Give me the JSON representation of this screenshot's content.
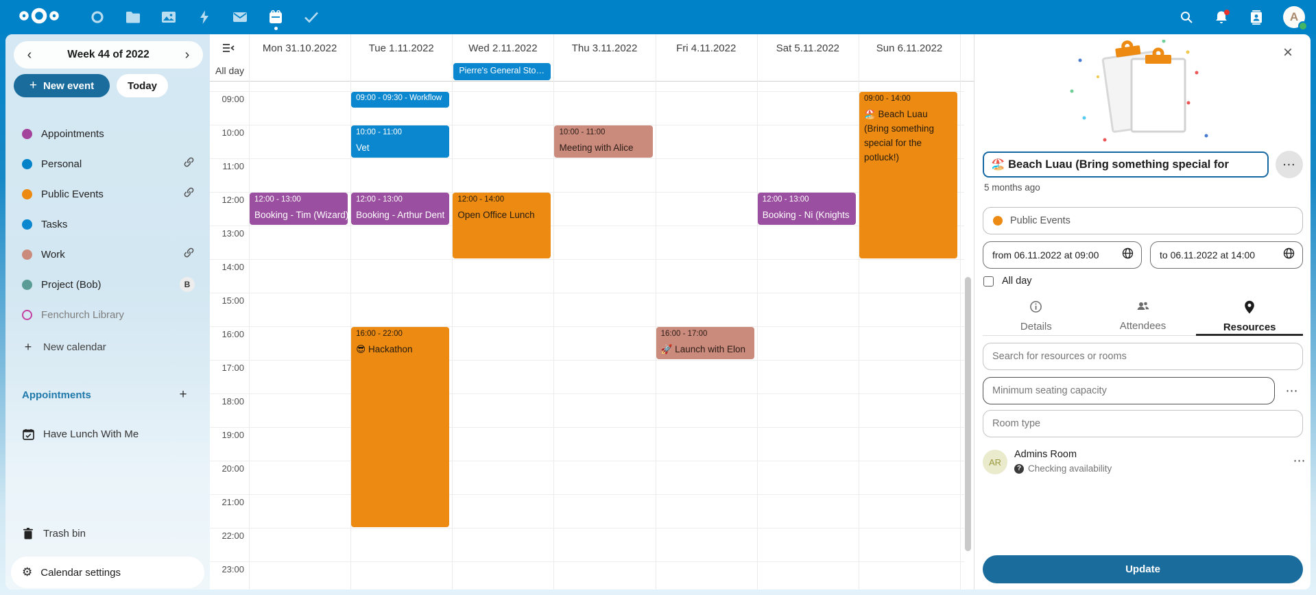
{
  "topbar": {
    "color": "#0082c9",
    "logo": "nextcloud-logo",
    "app_icons": [
      "dashboard-icon",
      "files-icon",
      "photos-icon",
      "activity-icon",
      "mail-icon",
      "calendar-icon",
      "tasks-icon"
    ],
    "active_app": "calendar",
    "right_icons": [
      "search-icon",
      "notifications-bell-icon",
      "contacts-icon"
    ],
    "avatar_letter": "A",
    "notification_badge_color": "#e9322d",
    "status_color": "#43b564"
  },
  "glyphs": {
    "prev": "‹",
    "next": "›",
    "close": "×",
    "menu": "⋯",
    "plus": "+",
    "gear": "⚙",
    "question": "?"
  },
  "sidebar": {
    "week_label": "Week 44 of 2022",
    "new_event_label": "New event",
    "today_label": "Today",
    "calendars": [
      {
        "label": "Appointments",
        "color": "#a4439c",
        "marker": "dot",
        "trailing": ""
      },
      {
        "label": "Personal",
        "color": "#0082c9",
        "marker": "dot",
        "trailing": "link"
      },
      {
        "label": "Public Events",
        "color": "#ec8a12",
        "marker": "dot",
        "trailing": "link"
      },
      {
        "label": "Tasks",
        "color": "#0b87cf",
        "marker": "dot",
        "trailing": ""
      },
      {
        "label": "Work",
        "color": "#ca8b7d",
        "marker": "dot",
        "trailing": "link"
      },
      {
        "label": "Project (Bob)",
        "color": "#5b9c96",
        "marker": "dot",
        "trailing": "B"
      },
      {
        "label": "Fenchurch Library",
        "color": "#c33fa0",
        "marker": "ring",
        "trailing": "",
        "muted": true
      }
    ],
    "new_calendar_label": "New calendar",
    "appointments_header": "Appointments",
    "appointment_items": [
      "Have Lunch With Me"
    ],
    "trash_label": "Trash bin",
    "settings_label": "Calendar settings"
  },
  "calendar": {
    "days": [
      "Mon 31.10.2022",
      "Tue 1.11.2022",
      "Wed 2.11.2022",
      "Thu 3.11.2022",
      "Fri 4.11.2022",
      "Sat 5.11.2022",
      "Sun 6.11.2022"
    ],
    "all_day_label": "All day",
    "times": [
      "09:00",
      "10:00",
      "11:00",
      "12:00",
      "13:00",
      "14:00",
      "15:00",
      "16:00",
      "17:00",
      "18:00",
      "19:00",
      "20:00",
      "21:00",
      "22:00",
      "23:00"
    ],
    "colors": {
      "blue": "#0b87cf",
      "purple": "#9b4fa0",
      "orange": "#ec8a12",
      "salmon": "#ca8b7d"
    },
    "all_day_events": [
      {
        "day": 2,
        "title": "Pierre's General Stor…",
        "color": "blue"
      }
    ],
    "events": [
      {
        "day": 1,
        "start": 9,
        "end": 9.5,
        "time": "09:00 - 09:30 - Workflow",
        "title": "",
        "color": "blue",
        "oneline": true
      },
      {
        "day": 1,
        "start": 10,
        "end": 11,
        "time": "10:00 - 11:00",
        "title": "Vet",
        "color": "blue"
      },
      {
        "day": 3,
        "start": 10,
        "end": 11,
        "time": "10:00 - 11:00",
        "title": "Meeting with Alice",
        "color": "salmon"
      },
      {
        "day": 0,
        "start": 12,
        "end": 13,
        "time": "12:00 - 13:00",
        "title": "Booking - Tim (Wizard)",
        "color": "purple",
        "nowrap": true
      },
      {
        "day": 1,
        "start": 12,
        "end": 13,
        "time": "12:00 - 13:00",
        "title": "Booking - Arthur Dent",
        "color": "purple",
        "nowrap": true
      },
      {
        "day": 2,
        "start": 12,
        "end": 14,
        "time": "12:00 - 14:00",
        "title": "Open Office Lunch",
        "color": "orange"
      },
      {
        "day": 5,
        "start": 12,
        "end": 13,
        "time": "12:00 - 13:00",
        "title": "Booking - Ni (Knights",
        "color": "purple",
        "nowrap": true
      },
      {
        "day": 6,
        "start": 9,
        "end": 14,
        "time": "09:00 - 14:00",
        "title": "🏖️ Beach Luau (Bring something special for the potluck!)",
        "color": "orange"
      },
      {
        "day": 1,
        "start": 16,
        "end": 22,
        "time": "16:00 - 22:00",
        "title": "😎 Hackathon",
        "color": "orange"
      },
      {
        "day": 4,
        "start": 16,
        "end": 17,
        "time": "16:00 - 17:00",
        "title": "🚀 Launch with Elon",
        "color": "salmon"
      }
    ]
  },
  "panel": {
    "title": "🏖️ Beach Luau (Bring something special for",
    "modified": "5 months ago",
    "calendar_select": {
      "label": "Public Events",
      "color": "#ec8a12"
    },
    "from_label": "from 06.11.2022 at 09:00",
    "to_label": "to 06.11.2022 at 14:00",
    "all_day_label": "All day",
    "all_day_checked": false,
    "tabs": [
      {
        "label": "Details",
        "icon": "info-icon",
        "active": false
      },
      {
        "label": "Attendees",
        "icon": "people-icon",
        "active": false
      },
      {
        "label": "Resources",
        "icon": "location-pin-icon",
        "active": true
      }
    ],
    "search_placeholder": "Search for resources or rooms",
    "seating_placeholder": "Minimum seating capacity",
    "room_type_placeholder": "Room type",
    "resource": {
      "avatar": "AR",
      "name": "Admins Room",
      "status": "Checking availability"
    },
    "update_label": "Update"
  }
}
